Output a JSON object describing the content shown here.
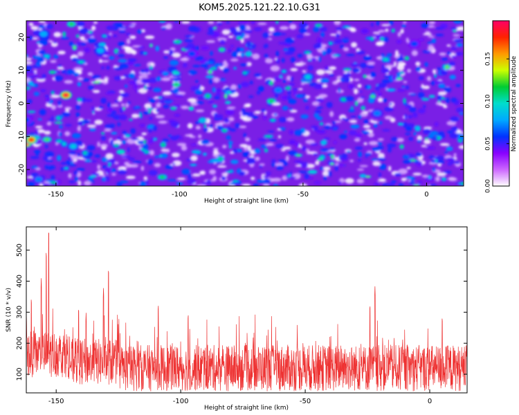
{
  "title": "KOM5.2025.121.22.10.G31",
  "chart_data": [
    {
      "type": "heatmap",
      "xlabel": "Height of straight line (km)",
      "ylabel": "Frequency (Hz)",
      "xlim": [
        -162,
        15
      ],
      "ylim": [
        -25,
        25
      ],
      "xticks": [
        -150,
        -100,
        -50,
        0
      ],
      "yticks": [
        -20,
        -10,
        0,
        10,
        20
      ],
      "grid": false,
      "colorbar": {
        "label": "Normalized spectral amplitude",
        "range": [
          0,
          0.195
        ],
        "ticks": [
          0.0,
          0.05,
          0.1,
          0.15
        ],
        "tick_labels": [
          "0.00",
          "0.05",
          "0.10",
          "0.15"
        ],
        "colors": [
          "#ffffff",
          "#cc66ff",
          "#8800ff",
          "#0033ff",
          "#00aaff",
          "#00ddcc",
          "#00cc33",
          "#ccff00",
          "#ff9900",
          "#ff2200",
          "#ff0066"
        ]
      },
      "hotspots": [
        {
          "x": -146,
          "y": 2.5,
          "value": 0.19
        },
        {
          "x": -162,
          "y": -12,
          "value": 0.19
        },
        {
          "x": -160,
          "y": -11,
          "value": 0.18
        },
        {
          "x": -143,
          "y": -13,
          "value": 0.09
        },
        {
          "x": -155,
          "y": 21,
          "value": 0.08
        },
        {
          "x": -157,
          "y": -23,
          "value": 0.07
        },
        {
          "x": -132,
          "y": 16,
          "value": 0.08
        },
        {
          "x": -48,
          "y": 8,
          "value": 0.09
        },
        {
          "x": -162,
          "y": -5,
          "value": 0.06
        },
        {
          "x": -60,
          "y": 4,
          "value": 0.07
        },
        {
          "x": -95,
          "y": 15,
          "value": 0.06
        },
        {
          "x": -20,
          "y": -3,
          "value": 0.07
        },
        {
          "x": -5,
          "y": 18,
          "value": 0.06
        }
      ]
    },
    {
      "type": "line",
      "xlabel": "Height of straight line (km)",
      "ylabel": "SNR (10 * v/v)",
      "xlim": [
        -162,
        15
      ],
      "ylim": [
        40,
        575
      ],
      "xticks": [
        -150,
        -100,
        -50,
        0
      ],
      "yticks": [
        100,
        200,
        300,
        400,
        500
      ],
      "grid": false,
      "series": [
        {
          "color": "#ee3333",
          "x_start": -162,
          "x_end": 15,
          "baseline_mean": 120,
          "peaks": [
            {
              "x": -153,
              "y": 570
            },
            {
              "x": -154,
              "y": 500
            },
            {
              "x": -156,
              "y": 410
            },
            {
              "x": -129,
              "y": 445
            },
            {
              "x": -131,
              "y": 380
            },
            {
              "x": -160,
              "y": 350
            },
            {
              "x": -162,
              "y": 300
            },
            {
              "x": -141,
              "y": 320
            },
            {
              "x": -138,
              "y": 300
            },
            {
              "x": -109,
              "y": 330
            },
            {
              "x": -97,
              "y": 300
            },
            {
              "x": -22,
              "y": 385
            },
            {
              "x": -24,
              "y": 330
            },
            {
              "x": 5,
              "y": 290
            }
          ]
        }
      ]
    }
  ]
}
